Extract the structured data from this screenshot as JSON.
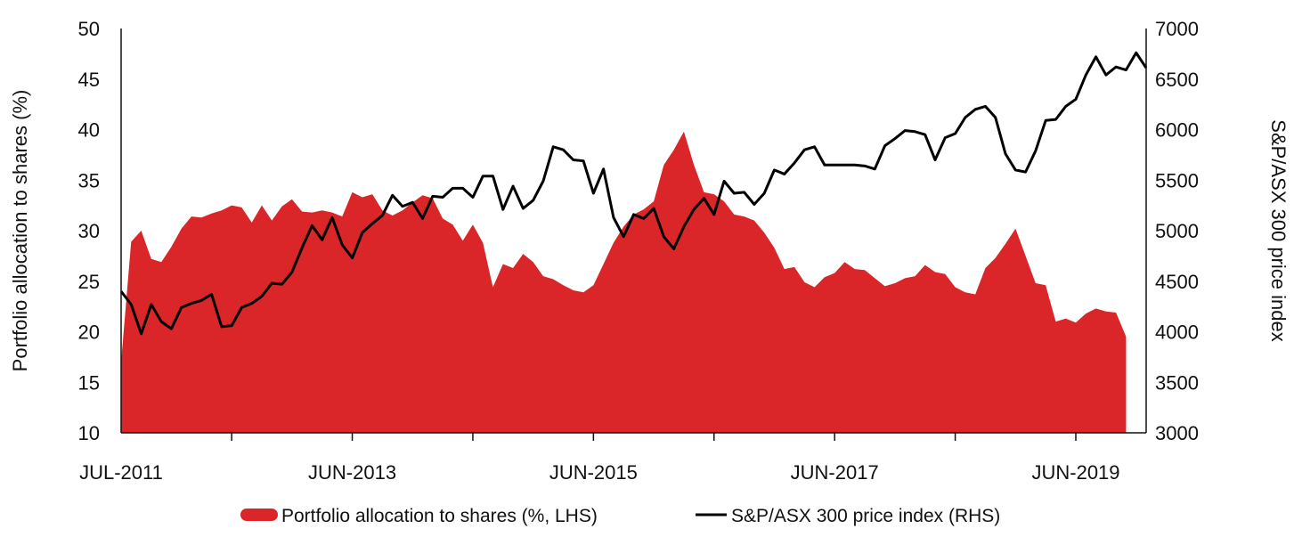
{
  "chart_data": {
    "type": "area+line",
    "title": "",
    "x_tick_labels": [
      "JUL-2011",
      "JUN-2013",
      "JUN-2015",
      "JUN-2017",
      "JUN-2019"
    ],
    "x_range": [
      "2011-07",
      "2019-12"
    ],
    "left_axis": {
      "label": "Portfolio allocation to shares (%)",
      "range": [
        10,
        50
      ],
      "ticks": [
        "50",
        "45",
        "40",
        "35",
        "30",
        "25",
        "20",
        "15",
        "10"
      ]
    },
    "right_axis": {
      "label": "S&P/ASX  300 price index",
      "range": [
        3000,
        7000
      ],
      "ticks": [
        "7000",
        "6500",
        "6000",
        "5500",
        "5000",
        "4500",
        "4000",
        "3500",
        "3000"
      ]
    },
    "series": [
      {
        "name": "Portfolio allocation to shares (%, LHS)",
        "type": "area",
        "axis": "left",
        "color": "#da2628",
        "points": [
          [
            0,
            17.0
          ],
          [
            1,
            28.9
          ],
          [
            2,
            30.0
          ],
          [
            3,
            27.2
          ],
          [
            4,
            26.9
          ],
          [
            5,
            28.4
          ],
          [
            6,
            30.2
          ],
          [
            7,
            31.4
          ],
          [
            8,
            31.3
          ],
          [
            9,
            31.7
          ],
          [
            10,
            32.0
          ],
          [
            11,
            32.5
          ],
          [
            12,
            32.3
          ],
          [
            13,
            30.8
          ],
          [
            14,
            32.5
          ],
          [
            15,
            31.0
          ],
          [
            16,
            32.4
          ],
          [
            17,
            33.1
          ],
          [
            18,
            31.9
          ],
          [
            19,
            31.8
          ],
          [
            20,
            32.0
          ],
          [
            21,
            31.8
          ],
          [
            22,
            31.4
          ],
          [
            23,
            33.8
          ],
          [
            24,
            33.3
          ],
          [
            25,
            33.6
          ],
          [
            26,
            32.0
          ],
          [
            27,
            31.5
          ],
          [
            28,
            32.0
          ],
          [
            29,
            32.8
          ],
          [
            30,
            33.5
          ],
          [
            31,
            33.2
          ],
          [
            32,
            31.2
          ],
          [
            33,
            30.6
          ],
          [
            34,
            29.0
          ],
          [
            35,
            30.6
          ],
          [
            36,
            28.8
          ],
          [
            37,
            24.4
          ],
          [
            38,
            26.7
          ],
          [
            39,
            26.3
          ],
          [
            40,
            27.7
          ],
          [
            41,
            26.9
          ],
          [
            42,
            25.5
          ],
          [
            43,
            25.2
          ],
          [
            44,
            24.6
          ],
          [
            45,
            24.1
          ],
          [
            46,
            23.9
          ],
          [
            47,
            24.6
          ],
          [
            48,
            26.7
          ],
          [
            49,
            28.8
          ],
          [
            50,
            30.4
          ],
          [
            51,
            31.6
          ],
          [
            52,
            32.1
          ],
          [
            53,
            32.9
          ],
          [
            54,
            36.5
          ],
          [
            55,
            38.0
          ],
          [
            56,
            39.8
          ],
          [
            57,
            36.5
          ],
          [
            58,
            33.8
          ],
          [
            59,
            33.6
          ],
          [
            60,
            32.9
          ],
          [
            61,
            31.6
          ],
          [
            62,
            31.4
          ],
          [
            63,
            31.0
          ],
          [
            64,
            29.8
          ],
          [
            65,
            28.3
          ],
          [
            66,
            26.2
          ],
          [
            67,
            26.4
          ],
          [
            68,
            24.9
          ],
          [
            69,
            24.4
          ],
          [
            70,
            25.4
          ],
          [
            71,
            25.8
          ],
          [
            72,
            26.9
          ],
          [
            73,
            26.2
          ],
          [
            74,
            26.1
          ],
          [
            75,
            25.3
          ],
          [
            76,
            24.5
          ],
          [
            77,
            24.8
          ],
          [
            78,
            25.3
          ],
          [
            79,
            25.5
          ],
          [
            80,
            26.6
          ],
          [
            81,
            25.9
          ],
          [
            82,
            25.7
          ],
          [
            83,
            24.4
          ],
          [
            84,
            23.9
          ],
          [
            85,
            23.7
          ],
          [
            86,
            26.3
          ],
          [
            87,
            27.3
          ],
          [
            88,
            28.7
          ],
          [
            89,
            30.2
          ],
          [
            90,
            27.5
          ],
          [
            91,
            24.8
          ],
          [
            92,
            24.6
          ],
          [
            93,
            21.0
          ],
          [
            94,
            21.3
          ],
          [
            95,
            20.9
          ],
          [
            96,
            21.8
          ],
          [
            97,
            22.3
          ],
          [
            98,
            22.0
          ],
          [
            99,
            21.9
          ],
          [
            100,
            19.5
          ]
        ]
      },
      {
        "name": "S&P/ASX 300 price index (RHS)",
        "type": "line",
        "axis": "right",
        "color": "#000000",
        "points": [
          [
            0,
            4400
          ],
          [
            1,
            4270
          ],
          [
            2,
            3980
          ],
          [
            3,
            4270
          ],
          [
            4,
            4100
          ],
          [
            5,
            4030
          ],
          [
            6,
            4240
          ],
          [
            7,
            4280
          ],
          [
            8,
            4310
          ],
          [
            9,
            4370
          ],
          [
            10,
            4050
          ],
          [
            11,
            4060
          ],
          [
            12,
            4240
          ],
          [
            13,
            4280
          ],
          [
            14,
            4350
          ],
          [
            15,
            4480
          ],
          [
            16,
            4470
          ],
          [
            17,
            4590
          ],
          [
            18,
            4830
          ],
          [
            19,
            5050
          ],
          [
            20,
            4910
          ],
          [
            21,
            5130
          ],
          [
            22,
            4860
          ],
          [
            23,
            4730
          ],
          [
            24,
            4980
          ],
          [
            25,
            5070
          ],
          [
            26,
            5150
          ],
          [
            27,
            5350
          ],
          [
            28,
            5240
          ],
          [
            29,
            5280
          ],
          [
            30,
            5120
          ],
          [
            31,
            5340
          ],
          [
            32,
            5330
          ],
          [
            33,
            5420
          ],
          [
            34,
            5420
          ],
          [
            35,
            5330
          ],
          [
            36,
            5540
          ],
          [
            37,
            5540
          ],
          [
            38,
            5210
          ],
          [
            39,
            5440
          ],
          [
            40,
            5220
          ],
          [
            41,
            5300
          ],
          [
            42,
            5490
          ],
          [
            43,
            5830
          ],
          [
            44,
            5800
          ],
          [
            45,
            5700
          ],
          [
            46,
            5690
          ],
          [
            47,
            5370
          ],
          [
            48,
            5610
          ],
          [
            49,
            5130
          ],
          [
            50,
            4940
          ],
          [
            51,
            5160
          ],
          [
            52,
            5120
          ],
          [
            53,
            5220
          ],
          [
            54,
            4940
          ],
          [
            55,
            4820
          ],
          [
            56,
            5040
          ],
          [
            57,
            5210
          ],
          [
            58,
            5320
          ],
          [
            59,
            5160
          ],
          [
            60,
            5490
          ],
          [
            61,
            5370
          ],
          [
            62,
            5380
          ],
          [
            63,
            5260
          ],
          [
            64,
            5370
          ],
          [
            65,
            5600
          ],
          [
            66,
            5560
          ],
          [
            67,
            5670
          ],
          [
            68,
            5800
          ],
          [
            69,
            5830
          ],
          [
            70,
            5650
          ],
          [
            71,
            5650
          ],
          [
            72,
            5650
          ],
          [
            73,
            5650
          ],
          [
            74,
            5640
          ],
          [
            75,
            5610
          ],
          [
            76,
            5840
          ],
          [
            77,
            5910
          ],
          [
            78,
            5990
          ],
          [
            79,
            5980
          ],
          [
            80,
            5950
          ],
          [
            81,
            5700
          ],
          [
            82,
            5920
          ],
          [
            83,
            5960
          ],
          [
            84,
            6120
          ],
          [
            85,
            6200
          ],
          [
            86,
            6230
          ],
          [
            87,
            6120
          ],
          [
            88,
            5760
          ],
          [
            89,
            5600
          ],
          [
            90,
            5580
          ],
          [
            91,
            5790
          ],
          [
            92,
            6090
          ],
          [
            93,
            6100
          ],
          [
            94,
            6230
          ],
          [
            95,
            6300
          ],
          [
            96,
            6540
          ],
          [
            97,
            6720
          ],
          [
            98,
            6540
          ],
          [
            99,
            6620
          ],
          [
            100,
            6590
          ],
          [
            101,
            6760
          ],
          [
            102,
            6610
          ]
        ]
      }
    ],
    "legend": {
      "position": "bottom-center",
      "items": [
        {
          "label": "Portfolio allocation to shares (%, LHS)",
          "swatch": "area",
          "color": "#da2628"
        },
        {
          "label": "S&P/ASX 300 price index (RHS)",
          "swatch": "line",
          "color": "#000000"
        }
      ]
    }
  }
}
